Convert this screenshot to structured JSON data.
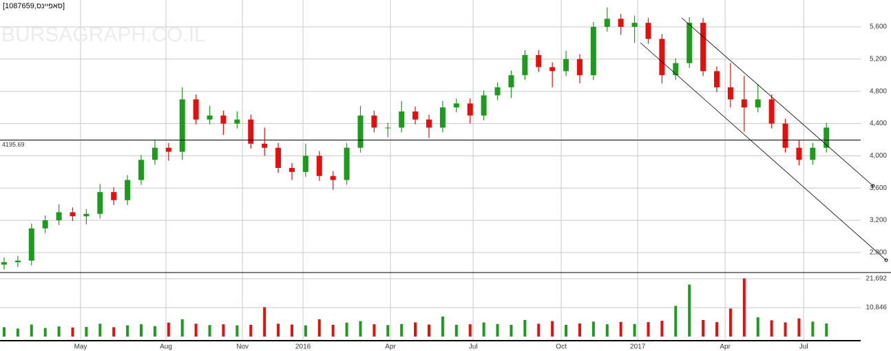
{
  "chart_data": [
    {
      "type": "candlestick",
      "title": "[1087659,סאפיינס]",
      "watermark": "BURSAGRAPH.CO.IL",
      "x": [
        0,
        1,
        2,
        3,
        4,
        5,
        6,
        7,
        8,
        9,
        10,
        11,
        12,
        13,
        14,
        15,
        16,
        17,
        18,
        19,
        20,
        21,
        22,
        23,
        24,
        25,
        26,
        27,
        28,
        29,
        30,
        31,
        32,
        33,
        34,
        35,
        36,
        37,
        38,
        39,
        40,
        41,
        42,
        43,
        44,
        45,
        46,
        47,
        48,
        49,
        50,
        51,
        52,
        53,
        54,
        55,
        56,
        57,
        58,
        59,
        60
      ],
      "open": [
        2650,
        2680,
        2700,
        3100,
        3200,
        3300,
        3250,
        3280,
        3550,
        3450,
        3700,
        3950,
        4100,
        4050,
        4700,
        4450,
        4500,
        4400,
        4450,
        4150,
        4100,
        3850,
        3800,
        4000,
        3750,
        3700,
        4100,
        4500,
        4350,
        4350,
        4550,
        4450,
        4350,
        4600,
        4650,
        4500,
        4750,
        4850,
        5000,
        5250,
        5100,
        5050,
        5200,
        5000,
        5600,
        5700,
        5600,
        5650,
        5450,
        5000,
        5150,
        5650,
        5050,
        4850,
        4700,
        4600,
        4700,
        4400,
        4100,
        3950,
        4100
      ],
      "high": [
        2740,
        2760,
        3160,
        3260,
        3400,
        3360,
        3340,
        3650,
        3610,
        3760,
        4010,
        4200,
        4160,
        4850,
        4760,
        4620,
        4560,
        4550,
        4510,
        4350,
        4160,
        3910,
        4150,
        4060,
        3810,
        4160,
        4620,
        4560,
        4410,
        4680,
        4610,
        4510,
        4680,
        4710,
        4710,
        4810,
        4910,
        5060,
        5310,
        5310,
        5160,
        5300,
        5260,
        5660,
        5840,
        5760,
        5740,
        5710,
        5510,
        5210,
        5720,
        5710,
        5110,
        5150,
        4990,
        4890,
        4760,
        4460,
        4200,
        4160,
        4410
      ],
      "low": [
        2590,
        2620,
        2640,
        3040,
        3140,
        3190,
        3150,
        3220,
        3390,
        3390,
        3640,
        3890,
        3940,
        3950,
        4390,
        4390,
        4260,
        4340,
        4090,
        4000,
        3790,
        3700,
        3740,
        3690,
        3580,
        3640,
        4040,
        4290,
        4230,
        4290,
        4390,
        4220,
        4290,
        4540,
        4400,
        4440,
        4690,
        4720,
        4940,
        5040,
        4850,
        4990,
        4900,
        4940,
        5540,
        5500,
        5400,
        5390,
        4900,
        4940,
        5090,
        4990,
        4790,
        4600,
        4300,
        4540,
        4340,
        4040,
        3880,
        3890,
        4040
      ],
      "close": [
        2680,
        2700,
        3100,
        3200,
        3300,
        3250,
        3280,
        3550,
        3450,
        3700,
        3950,
        4100,
        4050,
        4700,
        4450,
        4500,
        4400,
        4450,
        4150,
        4100,
        3850,
        3800,
        4000,
        3750,
        3700,
        4100,
        4500,
        4350,
        4350,
        4550,
        4450,
        4350,
        4600,
        4650,
        4500,
        4750,
        4850,
        5000,
        5250,
        5100,
        5050,
        5200,
        5000,
        5600,
        5700,
        5600,
        5650,
        5450,
        5000,
        5150,
        5650,
        5050,
        4850,
        4700,
        4600,
        4700,
        4400,
        4100,
        3950,
        4100,
        4350
      ],
      "up_color": "#1e9a1e",
      "down_color": "#e31010",
      "xlim": [
        -0.3,
        62.5
      ],
      "ylim": [
        2552,
        5933
      ],
      "yticks": [
        {
          "value": 2800,
          "label": "2,800"
        },
        {
          "value": 3200,
          "label": "3,200"
        },
        {
          "value": 3600,
          "label": "3,600"
        },
        {
          "value": 4000,
          "label": "4,000"
        },
        {
          "value": 4400,
          "label": "4,400"
        },
        {
          "value": 4800,
          "label": "4,800"
        },
        {
          "value": 5200,
          "label": "5,200"
        },
        {
          "value": 5600,
          "label": "5,600"
        }
      ],
      "reference_line": 4195.69,
      "grid": true
    },
    {
      "type": "bar",
      "color": "#2e8b2e",
      "x": [
        0,
        1,
        2,
        3,
        4,
        5,
        6,
        7,
        8,
        9,
        10,
        11,
        12,
        13,
        14,
        15,
        16,
        17,
        18,
        19,
        20,
        21,
        22,
        23,
        24,
        25,
        26,
        27,
        28,
        29,
        30,
        31,
        32,
        33,
        34,
        35,
        36,
        37,
        38,
        39,
        40,
        41,
        42,
        43,
        44,
        45,
        46,
        47,
        48,
        49,
        50,
        51,
        52,
        53,
        54,
        55,
        56,
        57,
        58,
        59,
        60
      ],
      "values": [
        3500,
        3000,
        4500,
        3200,
        3800,
        3400,
        3600,
        4800,
        3500,
        4200,
        4600,
        3900,
        5200,
        6500,
        4800,
        4300,
        4600,
        4200,
        4400,
        11000,
        4800,
        4500,
        4200,
        6500,
        4400,
        5200,
        5800,
        4600,
        4300,
        4700,
        5300,
        4500,
        7500,
        4400,
        4600,
        5300,
        4700,
        4400,
        6200,
        4800,
        5800,
        4400,
        4900,
        5600,
        4600,
        5500,
        4700,
        5400,
        5900,
        11500,
        19500,
        6200,
        5400,
        10500,
        21800,
        7200,
        6100,
        5300,
        6800,
        5600,
        4900
      ],
      "xlim": [
        -0.3,
        62.5
      ],
      "ylim": [
        0,
        24000
      ],
      "yticks": [
        {
          "value": 10846,
          "label": "10,846"
        },
        {
          "value": 21692,
          "label": "21,692"
        }
      ],
      "xticks": [
        {
          "value": 5.58,
          "label": "May"
        },
        {
          "value": 11.81,
          "label": "Aug"
        },
        {
          "value": 17.39,
          "label": "Nov"
        },
        {
          "value": 21.81,
          "label": "2016"
        },
        {
          "value": 28.19,
          "label": "Apr"
        },
        {
          "value": 34.22,
          "label": "Jul"
        },
        {
          "value": 40.65,
          "label": "Oct"
        },
        {
          "value": 46.23,
          "label": "2017"
        },
        {
          "value": 52.61,
          "label": "Apr"
        },
        {
          "value": 58.34,
          "label": "Jul"
        }
      ]
    }
  ]
}
